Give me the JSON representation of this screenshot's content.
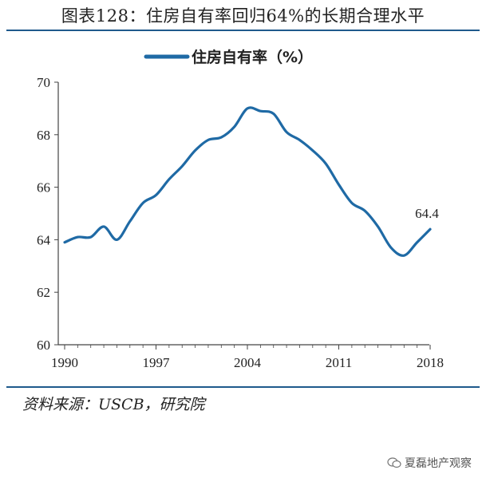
{
  "figure": {
    "title": "图表128：住房自有率回归64%的长期合理水平",
    "source": "资料来源：USCB，研究院",
    "watermark": "夏磊地产观察"
  },
  "colors": {
    "line": "#1f6aa5",
    "rule": "#1f5a8c",
    "axis": "#444444"
  },
  "icons": {
    "watermark": "wechat-icon"
  },
  "chart_data": {
    "type": "line",
    "legend_position": "top-center",
    "grid": false,
    "xlim": [
      1990,
      2018
    ],
    "ylim": [
      60,
      70
    ],
    "x_ticks": [
      1990,
      1997,
      2004,
      2011,
      2018
    ],
    "y_ticks": [
      60,
      62,
      64,
      66,
      68,
      70
    ],
    "series": [
      {
        "name": "住房自有率（%）",
        "x": [
          1990,
          1991,
          1992,
          1993,
          1994,
          1995,
          1996,
          1997,
          1998,
          1999,
          2000,
          2001,
          2002,
          2003,
          2004,
          2005,
          2006,
          2007,
          2008,
          2009,
          2010,
          2011,
          2012,
          2013,
          2014,
          2015,
          2016,
          2017,
          2018
        ],
        "values": [
          63.9,
          64.1,
          64.1,
          64.5,
          64.0,
          64.7,
          65.4,
          65.7,
          66.3,
          66.8,
          67.4,
          67.8,
          67.9,
          68.3,
          69.0,
          68.9,
          68.8,
          68.1,
          67.8,
          67.4,
          66.9,
          66.1,
          65.4,
          65.1,
          64.5,
          63.7,
          63.4,
          63.9,
          64.4
        ]
      }
    ],
    "annotations": [
      {
        "x": 2018,
        "y": 64.4,
        "text": "64.4"
      }
    ]
  }
}
